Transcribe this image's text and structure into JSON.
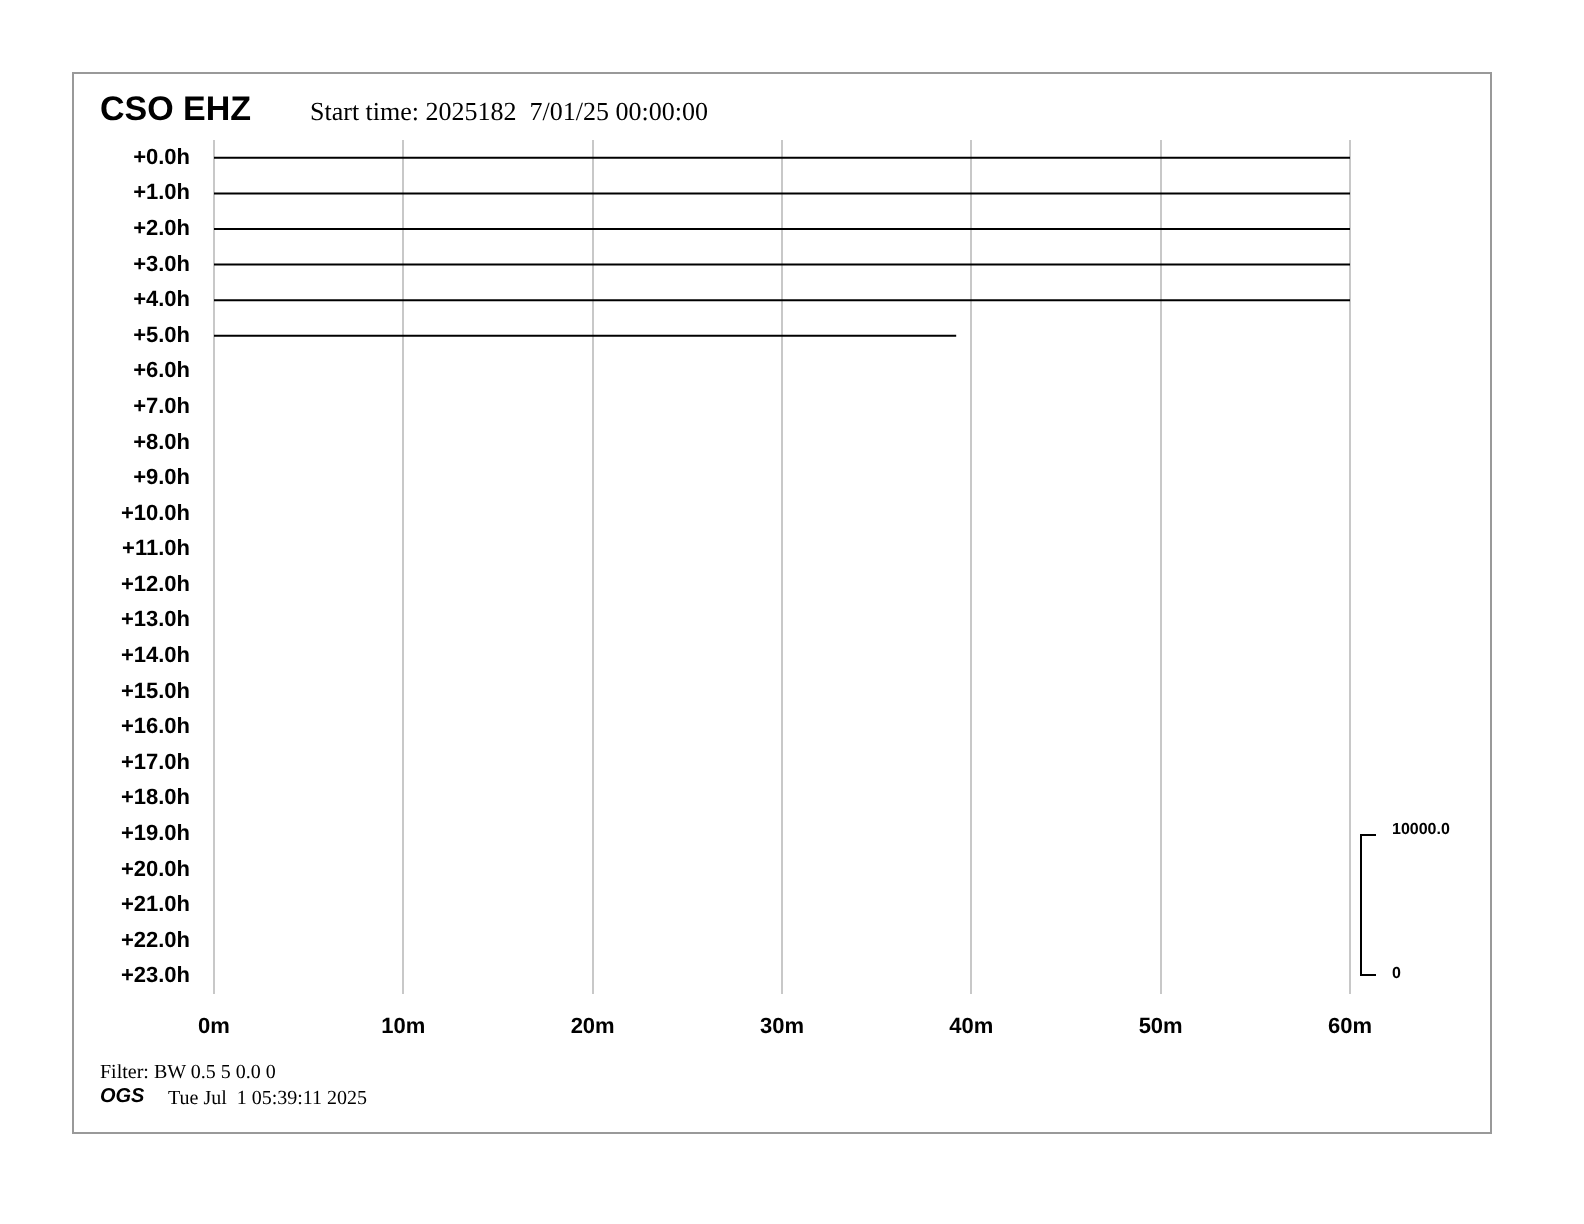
{
  "chart_data": {
    "type": "line",
    "title": "CSO EHZ",
    "subtitle": "Start time: 2025182  7/01/25 00:00:00",
    "annotations": [
      "10000.0",
      "0",
      "Filter: BW 0.5 5 0.0 0",
      "OGS",
      "Tue Jul  1 05:39:11 2025"
    ],
    "xlim": [
      0,
      60
    ],
    "xticks": [
      {
        "value": 0,
        "label": "0m"
      },
      {
        "value": 10,
        "label": "10m"
      },
      {
        "value": 20,
        "label": "20m"
      },
      {
        "value": 30,
        "label": "30m"
      },
      {
        "value": 40,
        "label": "40m"
      },
      {
        "value": 50,
        "label": "50m"
      },
      {
        "value": 60,
        "label": "60m"
      }
    ],
    "ylim": [
      23.5,
      -0.5
    ],
    "yticks": [
      {
        "value": 0,
        "label": "+0.0h"
      },
      {
        "value": 1,
        "label": "+1.0h"
      },
      {
        "value": 2,
        "label": "+2.0h"
      },
      {
        "value": 3,
        "label": "+3.0h"
      },
      {
        "value": 4,
        "label": "+4.0h"
      },
      {
        "value": 5,
        "label": "+5.0h"
      },
      {
        "value": 6,
        "label": "+6.0h"
      },
      {
        "value": 7,
        "label": "+7.0h"
      },
      {
        "value": 8,
        "label": "+8.0h"
      },
      {
        "value": 9,
        "label": "+9.0h"
      },
      {
        "value": 10,
        "label": "+10.0h"
      },
      {
        "value": 11,
        "label": "+11.0h"
      },
      {
        "value": 12,
        "label": "+12.0h"
      },
      {
        "value": 13,
        "label": "+13.0h"
      },
      {
        "value": 14,
        "label": "+14.0h"
      },
      {
        "value": 15,
        "label": "+15.0h"
      },
      {
        "value": 16,
        "label": "+16.0h"
      },
      {
        "value": 17,
        "label": "+17.0h"
      },
      {
        "value": 18,
        "label": "+18.0h"
      },
      {
        "value": 19,
        "label": "+19.0h"
      },
      {
        "value": 20,
        "label": "+20.0h"
      },
      {
        "value": 21,
        "label": "+21.0h"
      },
      {
        "value": 22,
        "label": "+22.0h"
      },
      {
        "value": 23,
        "label": "+23.0h"
      }
    ],
    "grid": "x",
    "marker": "none",
    "line_style": "solid",
    "series": [
      {
        "color": "#000000",
        "x": [
          0,
          60
        ],
        "values": [
          0,
          0
        ]
      },
      {
        "color": "#000000",
        "x": [
          0,
          60
        ],
        "values": [
          1,
          1
        ]
      },
      {
        "color": "#000000",
        "x": [
          0,
          60
        ],
        "values": [
          2,
          2
        ]
      },
      {
        "color": "#000000",
        "x": [
          0,
          60
        ],
        "values": [
          3,
          3
        ]
      },
      {
        "color": "#000000",
        "x": [
          0,
          60
        ],
        "values": [
          4,
          4
        ]
      },
      {
        "color": "#000000",
        "x": [
          0,
          39.2
        ],
        "values": [
          5,
          5
        ]
      }
    ]
  }
}
